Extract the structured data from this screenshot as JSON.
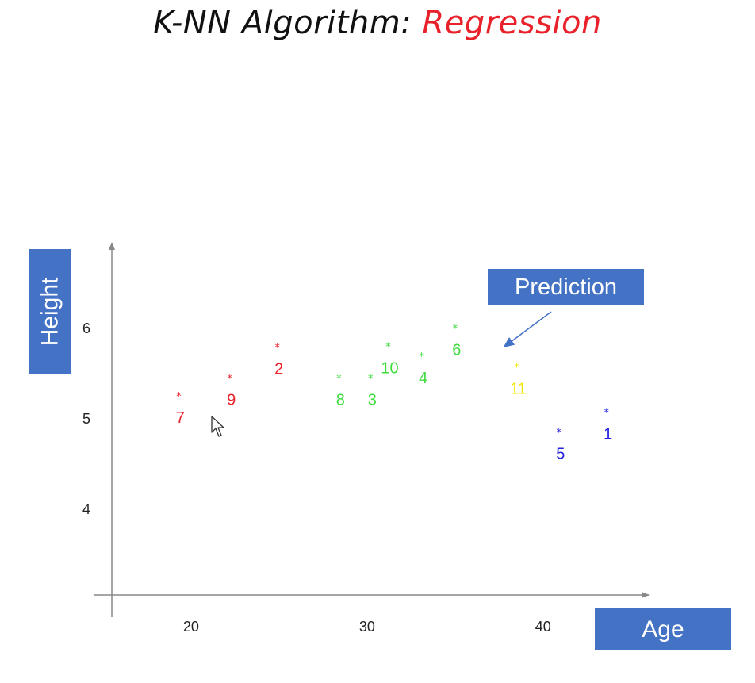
{
  "title": {
    "prefix": "K-NN Algorithm: ",
    "accent": "Regression"
  },
  "labels": {
    "y_label": "Height",
    "x_label": "Age",
    "annotation": "Prediction"
  },
  "colors": {
    "red": "#e8212b",
    "green": "#3ddc3d",
    "blue": "#2222e0",
    "yellow": "#f2e600",
    "label_box": "#4472c4",
    "arrow": "#4472c4"
  },
  "icons": {
    "cursor": "mouse-pointer-icon"
  },
  "chart_data": {
    "type": "scatter",
    "xlabel": "Age",
    "ylabel": "Height",
    "xlim": [
      15.5,
      46
    ],
    "ylim": [
      3.05,
      6.95
    ],
    "x_ticks": [
      20,
      30,
      40
    ],
    "y_ticks": [
      4,
      5,
      6
    ],
    "points": [
      {
        "id": "1",
        "x": 43.6,
        "y": 5.1,
        "color": "blue"
      },
      {
        "id": "2",
        "x": 24.9,
        "y": 5.82,
        "color": "red"
      },
      {
        "id": "3",
        "x": 30.2,
        "y": 5.48,
        "color": "green"
      },
      {
        "id": "4",
        "x": 33.1,
        "y": 5.72,
        "color": "green"
      },
      {
        "id": "5",
        "x": 40.9,
        "y": 4.88,
        "color": "blue"
      },
      {
        "id": "6",
        "x": 35.0,
        "y": 6.03,
        "color": "green"
      },
      {
        "id": "7",
        "x": 19.3,
        "y": 5.28,
        "color": "red"
      },
      {
        "id": "8",
        "x": 28.4,
        "y": 5.48,
        "color": "green"
      },
      {
        "id": "9",
        "x": 22.2,
        "y": 5.48,
        "color": "red"
      },
      {
        "id": "10",
        "x": 31.2,
        "y": 5.83,
        "color": "green"
      },
      {
        "id": "11",
        "x": 38.5,
        "y": 5.6,
        "color": "yellow"
      }
    ],
    "grid": false,
    "legend": "none"
  }
}
